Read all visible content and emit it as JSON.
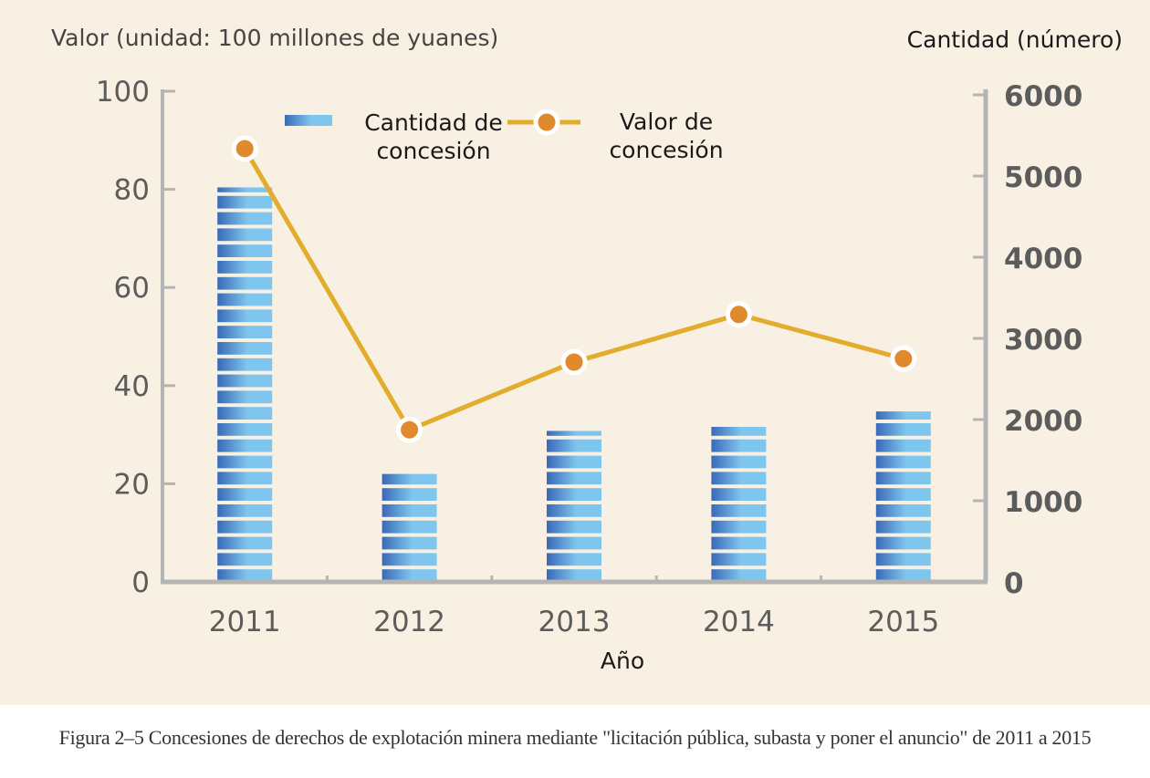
{
  "caption": "Figura 2–5 Concesiones de derechos de explotación minera mediante \"licitación pública, subasta y poner el anuncio\" de 2011 a 2015",
  "colors": {
    "background": "#f8f1e3",
    "axis": "#b4b4b4",
    "tick_text": "#5c5c5c",
    "line": "#e2ac2c",
    "marker": "#e08a2d",
    "bar_light": "#7fc6ef",
    "bar_dark": "#3a69b7"
  },
  "chart_data": {
    "type": "bar",
    "categories": [
      "2011",
      "2012",
      "2013",
      "2014",
      "2015"
    ],
    "xlabel": "Año",
    "ylabel_left": "Valor (unidad: 100 millones de yuanes)",
    "ylabel_right": "Cantidad (número)",
    "ylim_left": [
      0,
      100
    ],
    "ylim_right": [
      0,
      6000
    ],
    "yticks_left": [
      "0",
      "20",
      "40",
      "60",
      "80",
      "100"
    ],
    "yticks_right": [
      "0",
      "1000",
      "2000",
      "3000",
      "4000",
      "5000",
      "6000"
    ],
    "legend_position": "top-center",
    "grid": false,
    "series": [
      {
        "name": "Cantidad de concesión",
        "type": "bar",
        "axis": "right",
        "values": [
          4860,
          1330,
          1860,
          1910,
          2100
        ]
      },
      {
        "name": "Valor de concesión",
        "type": "line",
        "axis": "left",
        "values": [
          88.3,
          31.0,
          44.8,
          54.5,
          45.5
        ]
      }
    ]
  }
}
